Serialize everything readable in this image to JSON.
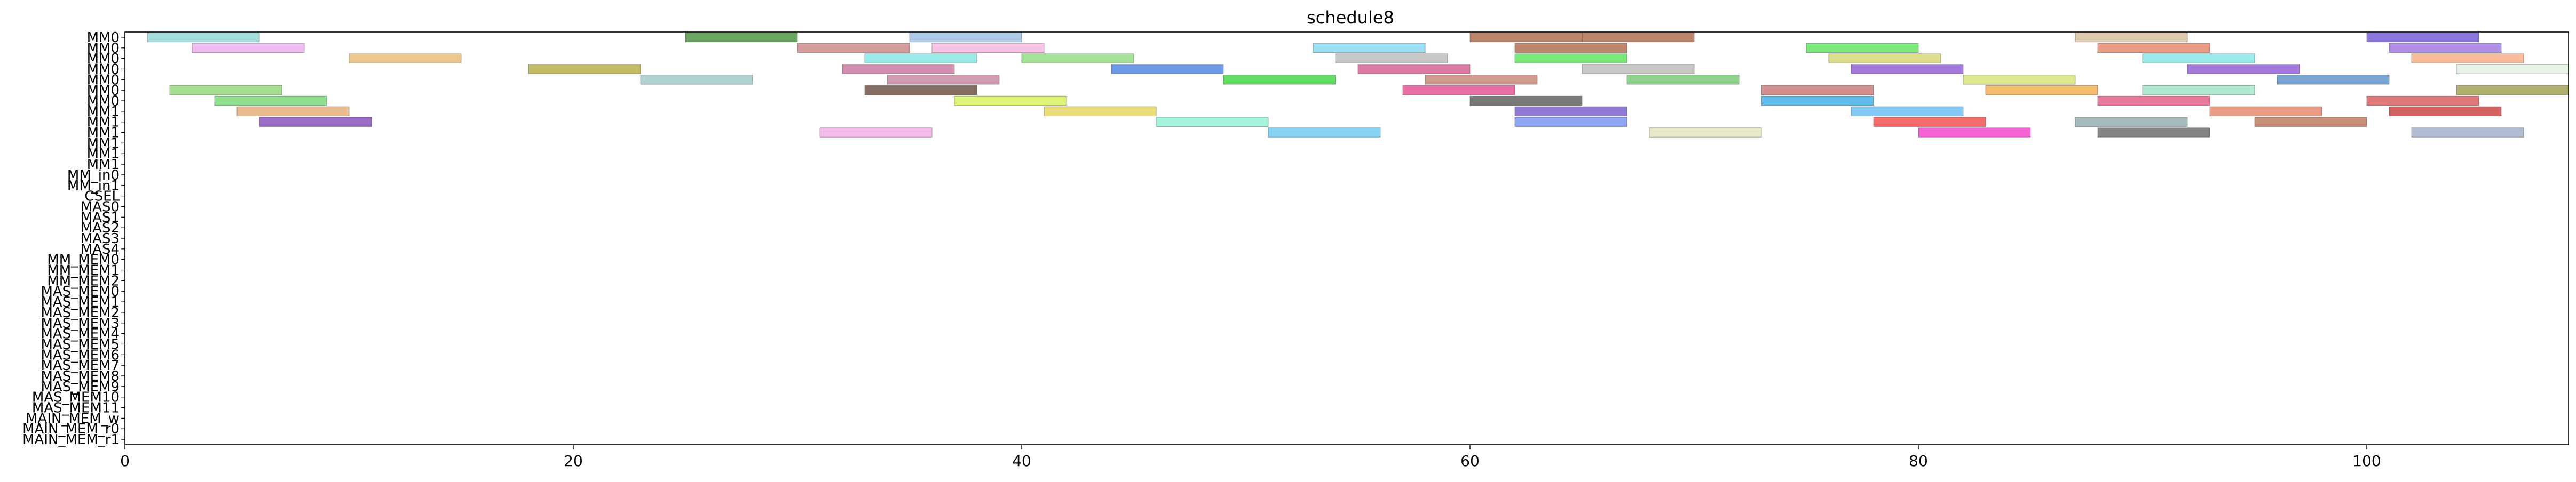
{
  "chart_data": {
    "type": "gantt",
    "title": "schedule8",
    "xlabel": "",
    "ylabel": "",
    "xlim": [
      0,
      109
    ],
    "x_ticks": [
      0,
      20,
      40,
      60,
      80,
      100
    ],
    "grid": false,
    "legend": "none",
    "resources": [
      "MM0",
      "MM0",
      "MM0",
      "MM0",
      "MM0",
      "MM0",
      "MM0",
      "MM1",
      "MM1",
      "MM1",
      "MM1",
      "MM1",
      "MM1",
      "MM_in0",
      "MM_in1",
      "CSEL",
      "MAS0",
      "MAS1",
      "MAS2",
      "MAS3",
      "MAS4",
      "MM_MEM0",
      "MM_MEM1",
      "MM_MEM2",
      "MAS_MEM0",
      "MAS_MEM1",
      "MAS_MEM2",
      "MAS_MEM3",
      "MAS_MEM4",
      "MAS_MEM5",
      "MAS_MEM6",
      "MAS_MEM7",
      "MAS_MEM8",
      "MAS_MEM9",
      "MAS_MEM10",
      "MAS_MEM11",
      "MAIN_MEM_w",
      "MAIN_MEM_r0",
      "MAIN_MEM_r1"
    ],
    "tasks": [
      {
        "row": 0,
        "start": 1,
        "end": 6,
        "color": "#7fcfcf"
      },
      {
        "row": 0,
        "start": 25,
        "end": 30,
        "color": "#2e7d1e"
      },
      {
        "row": 0,
        "start": 35,
        "end": 40,
        "color": "#8fb4e0"
      },
      {
        "row": 0,
        "start": 60,
        "end": 65,
        "color": "#a0522d"
      },
      {
        "row": 0,
        "start": 65,
        "end": 70,
        "color": "#a0522d"
      },
      {
        "row": 0,
        "start": 87,
        "end": 92,
        "color": "#d2b48c"
      },
      {
        "row": 0,
        "start": 100,
        "end": 105,
        "color": "#5b3fcf"
      },
      {
        "row": 1,
        "start": 3,
        "end": 8,
        "color": "#e8a0e8"
      },
      {
        "row": 1,
        "start": 30,
        "end": 35,
        "color": "#c07070"
      },
      {
        "row": 1,
        "start": 36,
        "end": 41,
        "color": "#f4a8d8"
      },
      {
        "row": 1,
        "start": 53,
        "end": 58,
        "color": "#6fd0f0"
      },
      {
        "row": 1,
        "start": 62,
        "end": 67,
        "color": "#a0522d"
      },
      {
        "row": 1,
        "start": 75,
        "end": 80,
        "color": "#40e040"
      },
      {
        "row": 1,
        "start": 88,
        "end": 93,
        "color": "#e07050"
      },
      {
        "row": 1,
        "start": 101,
        "end": 106,
        "color": "#9060e0"
      },
      {
        "row": 2,
        "start": 10,
        "end": 15,
        "color": "#e8b060"
      },
      {
        "row": 2,
        "start": 33,
        "end": 38,
        "color": "#70e0e0"
      },
      {
        "row": 2,
        "start": 40,
        "end": 45,
        "color": "#80d870"
      },
      {
        "row": 2,
        "start": 54,
        "end": 59,
        "color": "#b0b0b0"
      },
      {
        "row": 2,
        "start": 62,
        "end": 67,
        "color": "#40e040"
      },
      {
        "row": 2,
        "start": 76,
        "end": 81,
        "color": "#d0d060"
      },
      {
        "row": 2,
        "start": 90,
        "end": 95,
        "color": "#70e0e0"
      },
      {
        "row": 2,
        "start": 102,
        "end": 107,
        "color": "#f4a070"
      },
      {
        "row": 3,
        "start": 18,
        "end": 23,
        "color": "#a8a020"
      },
      {
        "row": 3,
        "start": 32,
        "end": 37,
        "color": "#c06090"
      },
      {
        "row": 3,
        "start": 44,
        "end": 49,
        "color": "#3070e0"
      },
      {
        "row": 3,
        "start": 55,
        "end": 60,
        "color": "#d04080"
      },
      {
        "row": 3,
        "start": 65,
        "end": 70,
        "color": "#b0b0b0"
      },
      {
        "row": 3,
        "start": 77,
        "end": 82,
        "color": "#8040d0"
      },
      {
        "row": 3,
        "start": 92,
        "end": 97,
        "color": "#8040d0"
      },
      {
        "row": 3,
        "start": 104,
        "end": 109,
        "color": "#e0f0e0"
      },
      {
        "row": 4,
        "start": 23,
        "end": 28,
        "color": "#90c0c0"
      },
      {
        "row": 4,
        "start": 34,
        "end": 39,
        "color": "#c07090"
      },
      {
        "row": 4,
        "start": 49,
        "end": 54,
        "color": "#20d020"
      },
      {
        "row": 4,
        "start": 58,
        "end": 63,
        "color": "#c07060"
      },
      {
        "row": 4,
        "start": 67,
        "end": 72,
        "color": "#60c060"
      },
      {
        "row": 4,
        "start": 82,
        "end": 87,
        "color": "#d0e060"
      },
      {
        "row": 4,
        "start": 96,
        "end": 101,
        "color": "#4080c0"
      },
      {
        "row": 5,
        "start": 2,
        "end": 7,
        "color": "#80d060"
      },
      {
        "row": 5,
        "start": 33,
        "end": 38,
        "color": "#503020"
      },
      {
        "row": 5,
        "start": 57,
        "end": 62,
        "color": "#e03080"
      },
      {
        "row": 5,
        "start": 73,
        "end": 78,
        "color": "#c06060"
      },
      {
        "row": 5,
        "start": 83,
        "end": 88,
        "color": "#f0a030"
      },
      {
        "row": 5,
        "start": 90,
        "end": 95,
        "color": "#90e0c0"
      },
      {
        "row": 5,
        "start": 104,
        "end": 109,
        "color": "#909030"
      },
      {
        "row": 6,
        "start": 4,
        "end": 9,
        "color": "#60d060"
      },
      {
        "row": 6,
        "start": 37,
        "end": 42,
        "color": "#d0f040"
      },
      {
        "row": 6,
        "start": 60,
        "end": 65,
        "color": "#404040"
      },
      {
        "row": 6,
        "start": 73,
        "end": 78,
        "color": "#20a0e0"
      },
      {
        "row": 6,
        "start": 88,
        "end": 93,
        "color": "#e04070"
      },
      {
        "row": 6,
        "start": 100,
        "end": 105,
        "color": "#d04040"
      },
      {
        "row": 7,
        "start": 5,
        "end": 10,
        "color": "#e0a060"
      },
      {
        "row": 7,
        "start": 41,
        "end": 46,
        "color": "#e0d040"
      },
      {
        "row": 7,
        "start": 62,
        "end": 67,
        "color": "#6040c0"
      },
      {
        "row": 7,
        "start": 77,
        "end": 82,
        "color": "#50b0f0"
      },
      {
        "row": 7,
        "start": 93,
        "end": 98,
        "color": "#e07050"
      },
      {
        "row": 7,
        "start": 101,
        "end": 106,
        "color": "#c02020"
      },
      {
        "row": 8,
        "start": 6,
        "end": 11,
        "color": "#7030b0"
      },
      {
        "row": 8,
        "start": 46,
        "end": 51,
        "color": "#80f0d0"
      },
      {
        "row": 8,
        "start": 62,
        "end": 67,
        "color": "#6080f0"
      },
      {
        "row": 8,
        "start": 78,
        "end": 83,
        "color": "#f03030"
      },
      {
        "row": 8,
        "start": 87,
        "end": 92,
        "color": "#80a0a0"
      },
      {
        "row": 8,
        "start": 95,
        "end": 100,
        "color": "#b06040"
      },
      {
        "row": 9,
        "start": 31,
        "end": 36,
        "color": "#f0a0e0"
      },
      {
        "row": 9,
        "start": 51,
        "end": 56,
        "color": "#50c0f0"
      },
      {
        "row": 9,
        "start": 68,
        "end": 73,
        "color": "#e0e0b0"
      },
      {
        "row": 9,
        "start": 80,
        "end": 85,
        "color": "#f020c0"
      },
      {
        "row": 9,
        "start": 88,
        "end": 93,
        "color": "#505050"
      },
      {
        "row": 9,
        "start": 102,
        "end": 107,
        "color": "#90a0c0"
      }
    ]
  }
}
